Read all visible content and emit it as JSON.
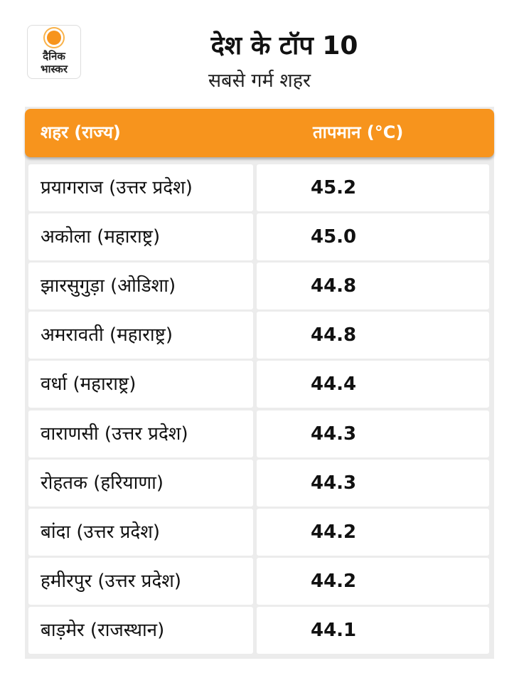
{
  "logo": {
    "line1": "दैनिक",
    "line2": "भास्कर"
  },
  "header": {
    "title": "देश के टॉप 10",
    "subtitle": "सबसे गर्म शहर"
  },
  "table": {
    "columns": [
      "शहर (राज्य)",
      "तापमान (°C)"
    ],
    "rows": [
      [
        "प्रयागराज (उत्तर प्रदेश)",
        "45.2"
      ],
      [
        "अकोला (महाराष्ट्र)",
        "45.0"
      ],
      [
        "झारसुगुड़ा (ओडिशा)",
        "44.8"
      ],
      [
        "अमरावती (महाराष्ट्र)",
        "44.8"
      ],
      [
        "वर्धा (महाराष्ट्र)",
        "44.4"
      ],
      [
        "वाराणसी (उत्तर प्रदेश)",
        "44.3"
      ],
      [
        "रोहतक (हरियाणा)",
        "44.3"
      ],
      [
        "बांदा (उत्तर प्रदेश)",
        "44.2"
      ],
      [
        "हमीरपुर (उत्तर प्रदेश)",
        "44.2"
      ],
      [
        "बाड़मेर (राजस्थान)",
        "44.1"
      ]
    ]
  }
}
